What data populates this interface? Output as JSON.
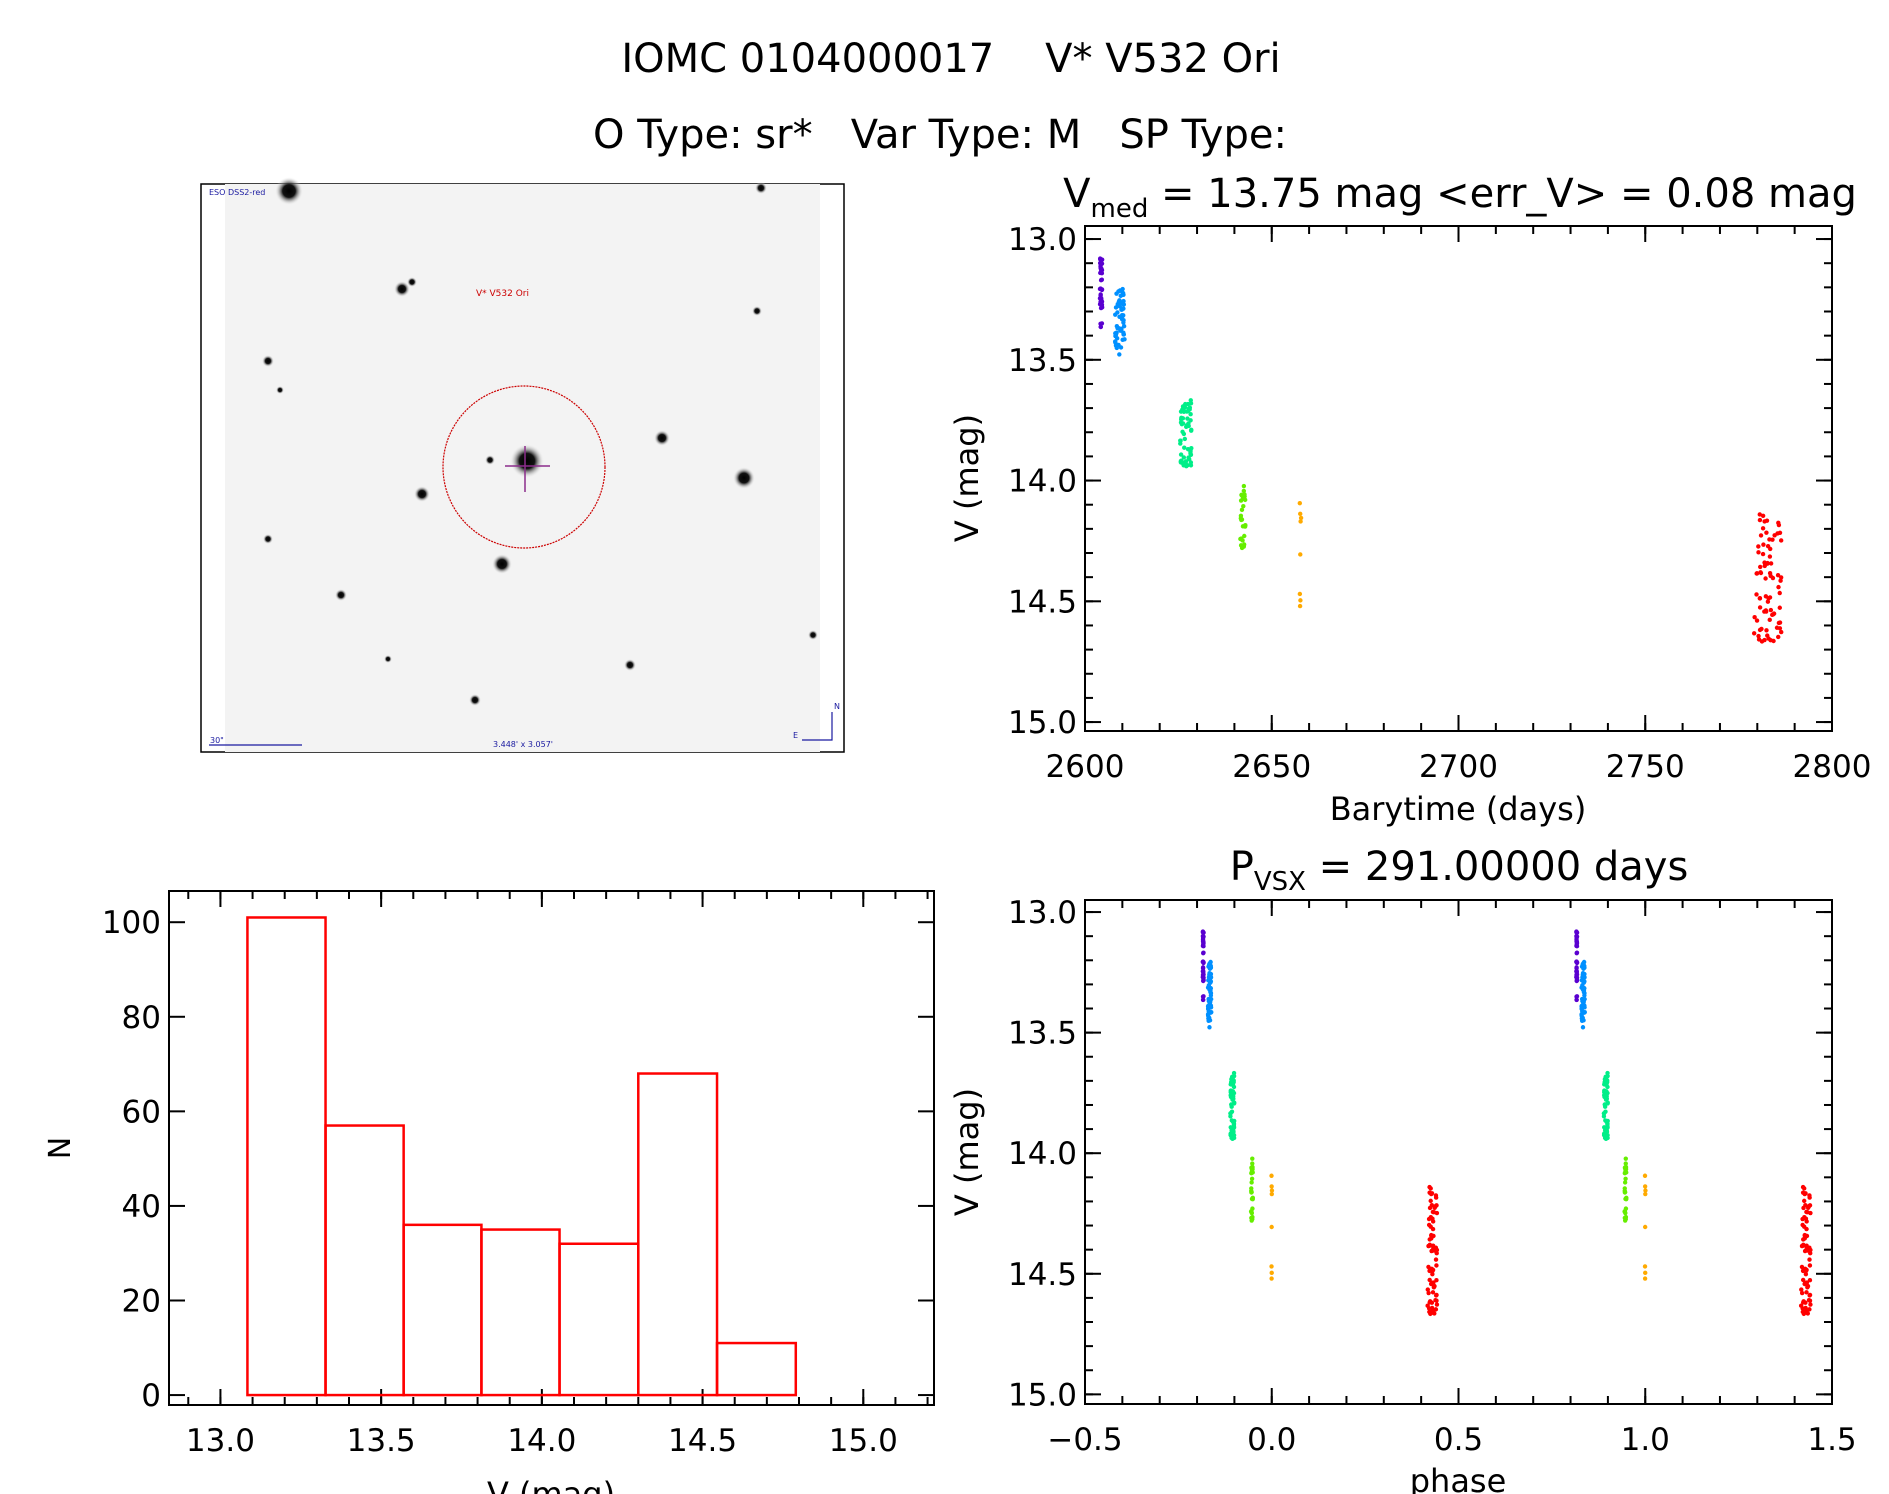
{
  "header": {
    "title": "IOMC 0104000017    V* V532 Ori",
    "subtitle": "O Type: sr*   Var Type: M   SP Type:"
  },
  "image_panel": {
    "survey_label": "ESO DSS2-red",
    "target_label": "V* V532 Ori",
    "scale_label": "30\"",
    "fov_label": "3.448' x 3.057'",
    "north_label": "N",
    "east_label": "E"
  },
  "chart_data": [
    {
      "type": "scatter",
      "title_main": "V",
      "title_sub": "med",
      "title_rest": " = 13.75 mag <err_V> = 0.08 mag",
      "xlabel": "Barytime (days)",
      "ylabel": "V (mag)",
      "xlim": [
        2600,
        2800
      ],
      "ylim": [
        15.0,
        13.0
      ],
      "y_inverted": true,
      "xticks": [
        "2600",
        "2650",
        "2700",
        "2750",
        "2800"
      ],
      "yticks": [
        "13.0",
        "13.5",
        "14.0",
        "14.5",
        "15.0"
      ],
      "clusters": [
        {
          "color": "#5a00d0",
          "t": [
            2604.0,
            2604.6
          ],
          "v": [
            13.07,
            13.37
          ],
          "n": 40
        },
        {
          "color": "#0090ff",
          "t": [
            2608.0,
            2610.6
          ],
          "v": [
            13.2,
            13.48
          ],
          "n": 60
        },
        {
          "color": "#00ee88",
          "t": [
            2625.5,
            2628.5
          ],
          "v": [
            13.63,
            13.95
          ],
          "n": 60
        },
        {
          "color": "#66ee00",
          "t": [
            2641.5,
            2643.0
          ],
          "v": [
            14.02,
            14.31
          ],
          "n": 30
        },
        {
          "color": "#ffaa00",
          "t": [
            2657.3,
            2658.0
          ],
          "v": [
            14.0,
            14.73
          ],
          "n": 8
        },
        {
          "color": "#ff0000",
          "t": [
            2779.0,
            2786.5
          ],
          "v": [
            14.14,
            14.67
          ],
          "n": 80
        }
      ]
    },
    {
      "type": "scatter",
      "title_main": "P",
      "title_sub": "VSX",
      "title_rest": " = 291.00000 days",
      "xlabel": "phase",
      "ylabel": "V (mag)",
      "period_days": 291.0,
      "xlim": [
        -0.5,
        1.5
      ],
      "ylim": [
        15.0,
        13.0
      ],
      "y_inverted": true,
      "xticks": [
        "−0.5",
        "0.0",
        "0.5",
        "1.0",
        "1.5"
      ],
      "yticks": [
        "13.0",
        "13.5",
        "14.0",
        "14.5",
        "15.0"
      ]
    },
    {
      "type": "bar",
      "xlabel": "V (mag)",
      "ylabel": "N",
      "xlim": [
        12.84,
        15.22
      ],
      "ylim": [
        0,
        106
      ],
      "xticks": [
        "13.0",
        "13.5",
        "14.0",
        "14.5",
        "15.0"
      ],
      "yticks": [
        "0",
        "20",
        "40",
        "60",
        "80",
        "100"
      ],
      "bin_edges": [
        13.084,
        13.327,
        13.57,
        13.812,
        14.055,
        14.3,
        14.545,
        14.79
      ],
      "counts": [
        101,
        57,
        36,
        35,
        32,
        68,
        11
      ],
      "color": "#ff0000"
    }
  ]
}
